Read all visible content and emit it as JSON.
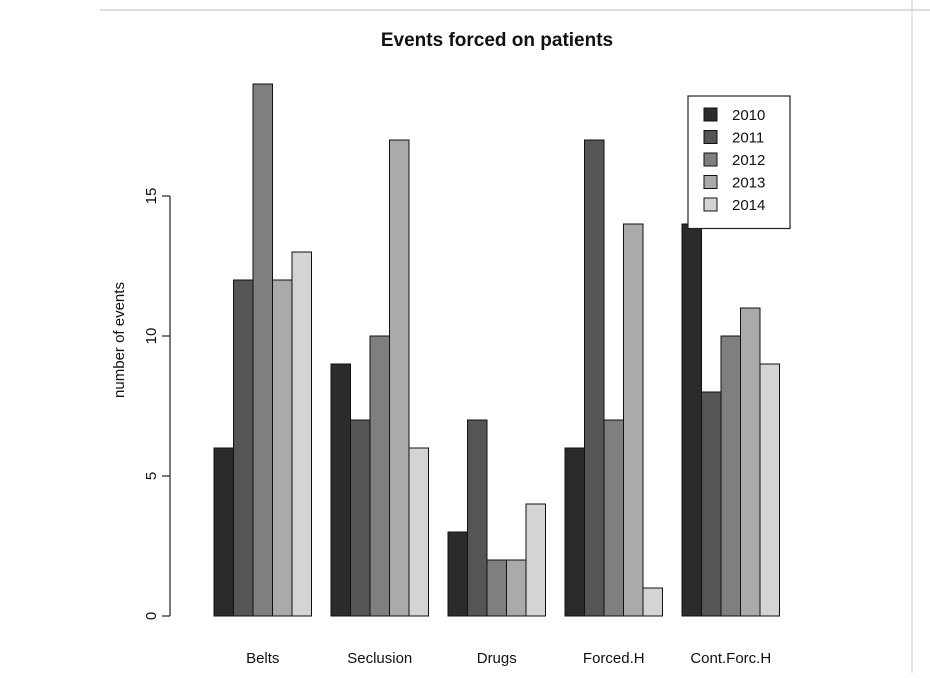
{
  "chart_data": {
    "type": "bar",
    "title": "Events forced on patients",
    "xlabel": "",
    "ylabel": "number of events",
    "categories": [
      "Belts",
      "Seclusion",
      "Drugs",
      "Forced.H",
      "Cont.Forc.H"
    ],
    "series": [
      {
        "name": "2010",
        "color": "#2b2b2b",
        "values": [
          6,
          9,
          3,
          6,
          14
        ]
      },
      {
        "name": "2011",
        "color": "#555555",
        "values": [
          12,
          7,
          7,
          17,
          8
        ]
      },
      {
        "name": "2012",
        "color": "#7f7f7f",
        "values": [
          19,
          10,
          2,
          7,
          10
        ]
      },
      {
        "name": "2013",
        "color": "#aaaaaa",
        "values": [
          12,
          17,
          2,
          14,
          11
        ]
      },
      {
        "name": "2014",
        "color": "#d4d4d4",
        "values": [
          13,
          6,
          4,
          1,
          9
        ]
      }
    ],
    "ylim": [
      0,
      19
    ],
    "yticks": [
      0,
      5,
      10,
      15
    ],
    "ytick_labels": [
      "0",
      "5",
      "10",
      "15"
    ],
    "legend_position": "top-right",
    "grid": false
  }
}
